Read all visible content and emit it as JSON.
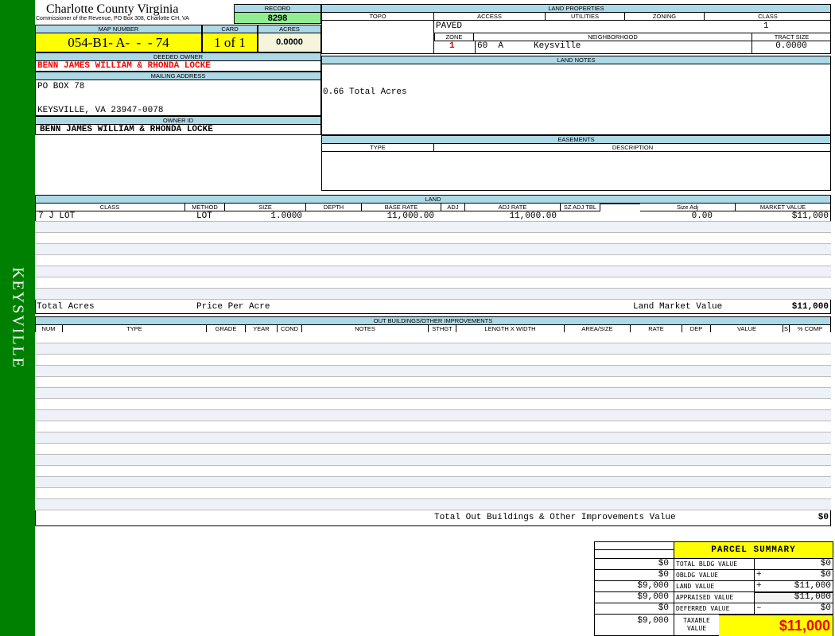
{
  "sidebar": {
    "label": "KEYSVILLE"
  },
  "header": {
    "title": "Charlotte County Virginia",
    "subtitle": "Commissioner of the Revenue, PO Box 308, Charlotte CH, VA",
    "record_label": "RECORD",
    "record": "8298"
  },
  "parcel": {
    "map_label": "MAP NUMBER",
    "map_number": "054-B1- A-  -  - 74",
    "card_label": "CARD",
    "card": "1 of 1",
    "acres_label": "ACRES",
    "acres": "0.0000"
  },
  "owner": {
    "deeded_label": "DEEDED OWNER",
    "deeded": "BENN JAMES WILLIAM & RHONDA LOCKE",
    "mailing_label": "MAILING ADDRESS",
    "address1": "PO BOX 78",
    "address2": "KEYSVILLE, VA 23947-0078",
    "owner_id_label": "OWNER ID",
    "owner_id": "BENN JAMES WILLIAM & RHONDA LOCKE"
  },
  "land_properties": {
    "title": "LAND PROPERTIES",
    "topo_label": "TOPO",
    "access_label": "ACCESS",
    "utilities_label": "UTILITIES",
    "zoning_label": "ZONING",
    "class_label": "CLASS",
    "access": "PAVED",
    "class": "1",
    "zone_label": "ZONE",
    "neighborhood_label": "NEIGHBORHOOD",
    "tract_label": "TRACT SIZE",
    "zone": "1",
    "neighborhood_code": "60  A",
    "neighborhood": "Keysville",
    "tract_size": "0.0000"
  },
  "land_notes": {
    "title": "LAND NOTES",
    "text": "0.66 Total Acres"
  },
  "easements": {
    "title": "EASEMENTS",
    "type_label": "TYPE",
    "description_label": "DESCRIPTION"
  },
  "land": {
    "title": "LAND",
    "columns": [
      "CLASS",
      "METHOD",
      "SIZE",
      "DEPTH",
      "BASE RATE",
      "ADJ",
      "ADJ RATE",
      "SZ ADJ TBL",
      "",
      "Size Adj",
      "MARKET VALUE"
    ],
    "rows": [
      {
        "class": "7 J LOT",
        "method": "LOT",
        "size": "1.0000",
        "base_rate": "11,000.00",
        "adj_rate": "11,000.00",
        "size_adj": "0.00",
        "market_value": "$11,000"
      }
    ],
    "total_acres_label": "Total Acres",
    "price_per_acre_label": "Price Per Acre",
    "market_label": "Land Market Value",
    "market_total": "$11,000"
  },
  "outbuildings": {
    "title": "OUT BUILDINGS/OTHER IMPROVEMENTS",
    "columns": [
      "NUM",
      "TYPE",
      "GRADE",
      "YEAR",
      "COND",
      "NOTES",
      "STHGT",
      "LENGTH X WIDTH",
      "AREA/SIZE",
      "RATE",
      "DEP",
      "VALUE",
      "S",
      "% COMP"
    ],
    "total_label": "Total Out Buildings & Other Improvements Value",
    "total": "$0"
  },
  "summary": {
    "title": "PARCEL SUMMARY",
    "rows": [
      {
        "prior": "$0",
        "label": "TOTAL BLDG VALUE",
        "op": "",
        "value": "$0"
      },
      {
        "prior": "$0",
        "label": "OBLDG VALUE",
        "op": "+",
        "value": "$0"
      },
      {
        "prior": "$9,000",
        "label": "LAND VALUE",
        "op": "+",
        "value": "$11,000"
      },
      {
        "prior": "$9,000",
        "label": "APPRAISED VALUE",
        "op": "",
        "value": "$11,000"
      },
      {
        "prior": "$0",
        "label": "DEFERRED VALUE",
        "op": "–",
        "value": "$0"
      }
    ],
    "taxable_prior": "$9,000",
    "taxable_label": "TAXABLE VALUE",
    "taxable": "$11,000"
  },
  "colors": {
    "sidebar": "#008000",
    "header": "#add8e6",
    "highlight": "#ffff00",
    "record": "#90ee90",
    "owner": "#ff0000"
  }
}
